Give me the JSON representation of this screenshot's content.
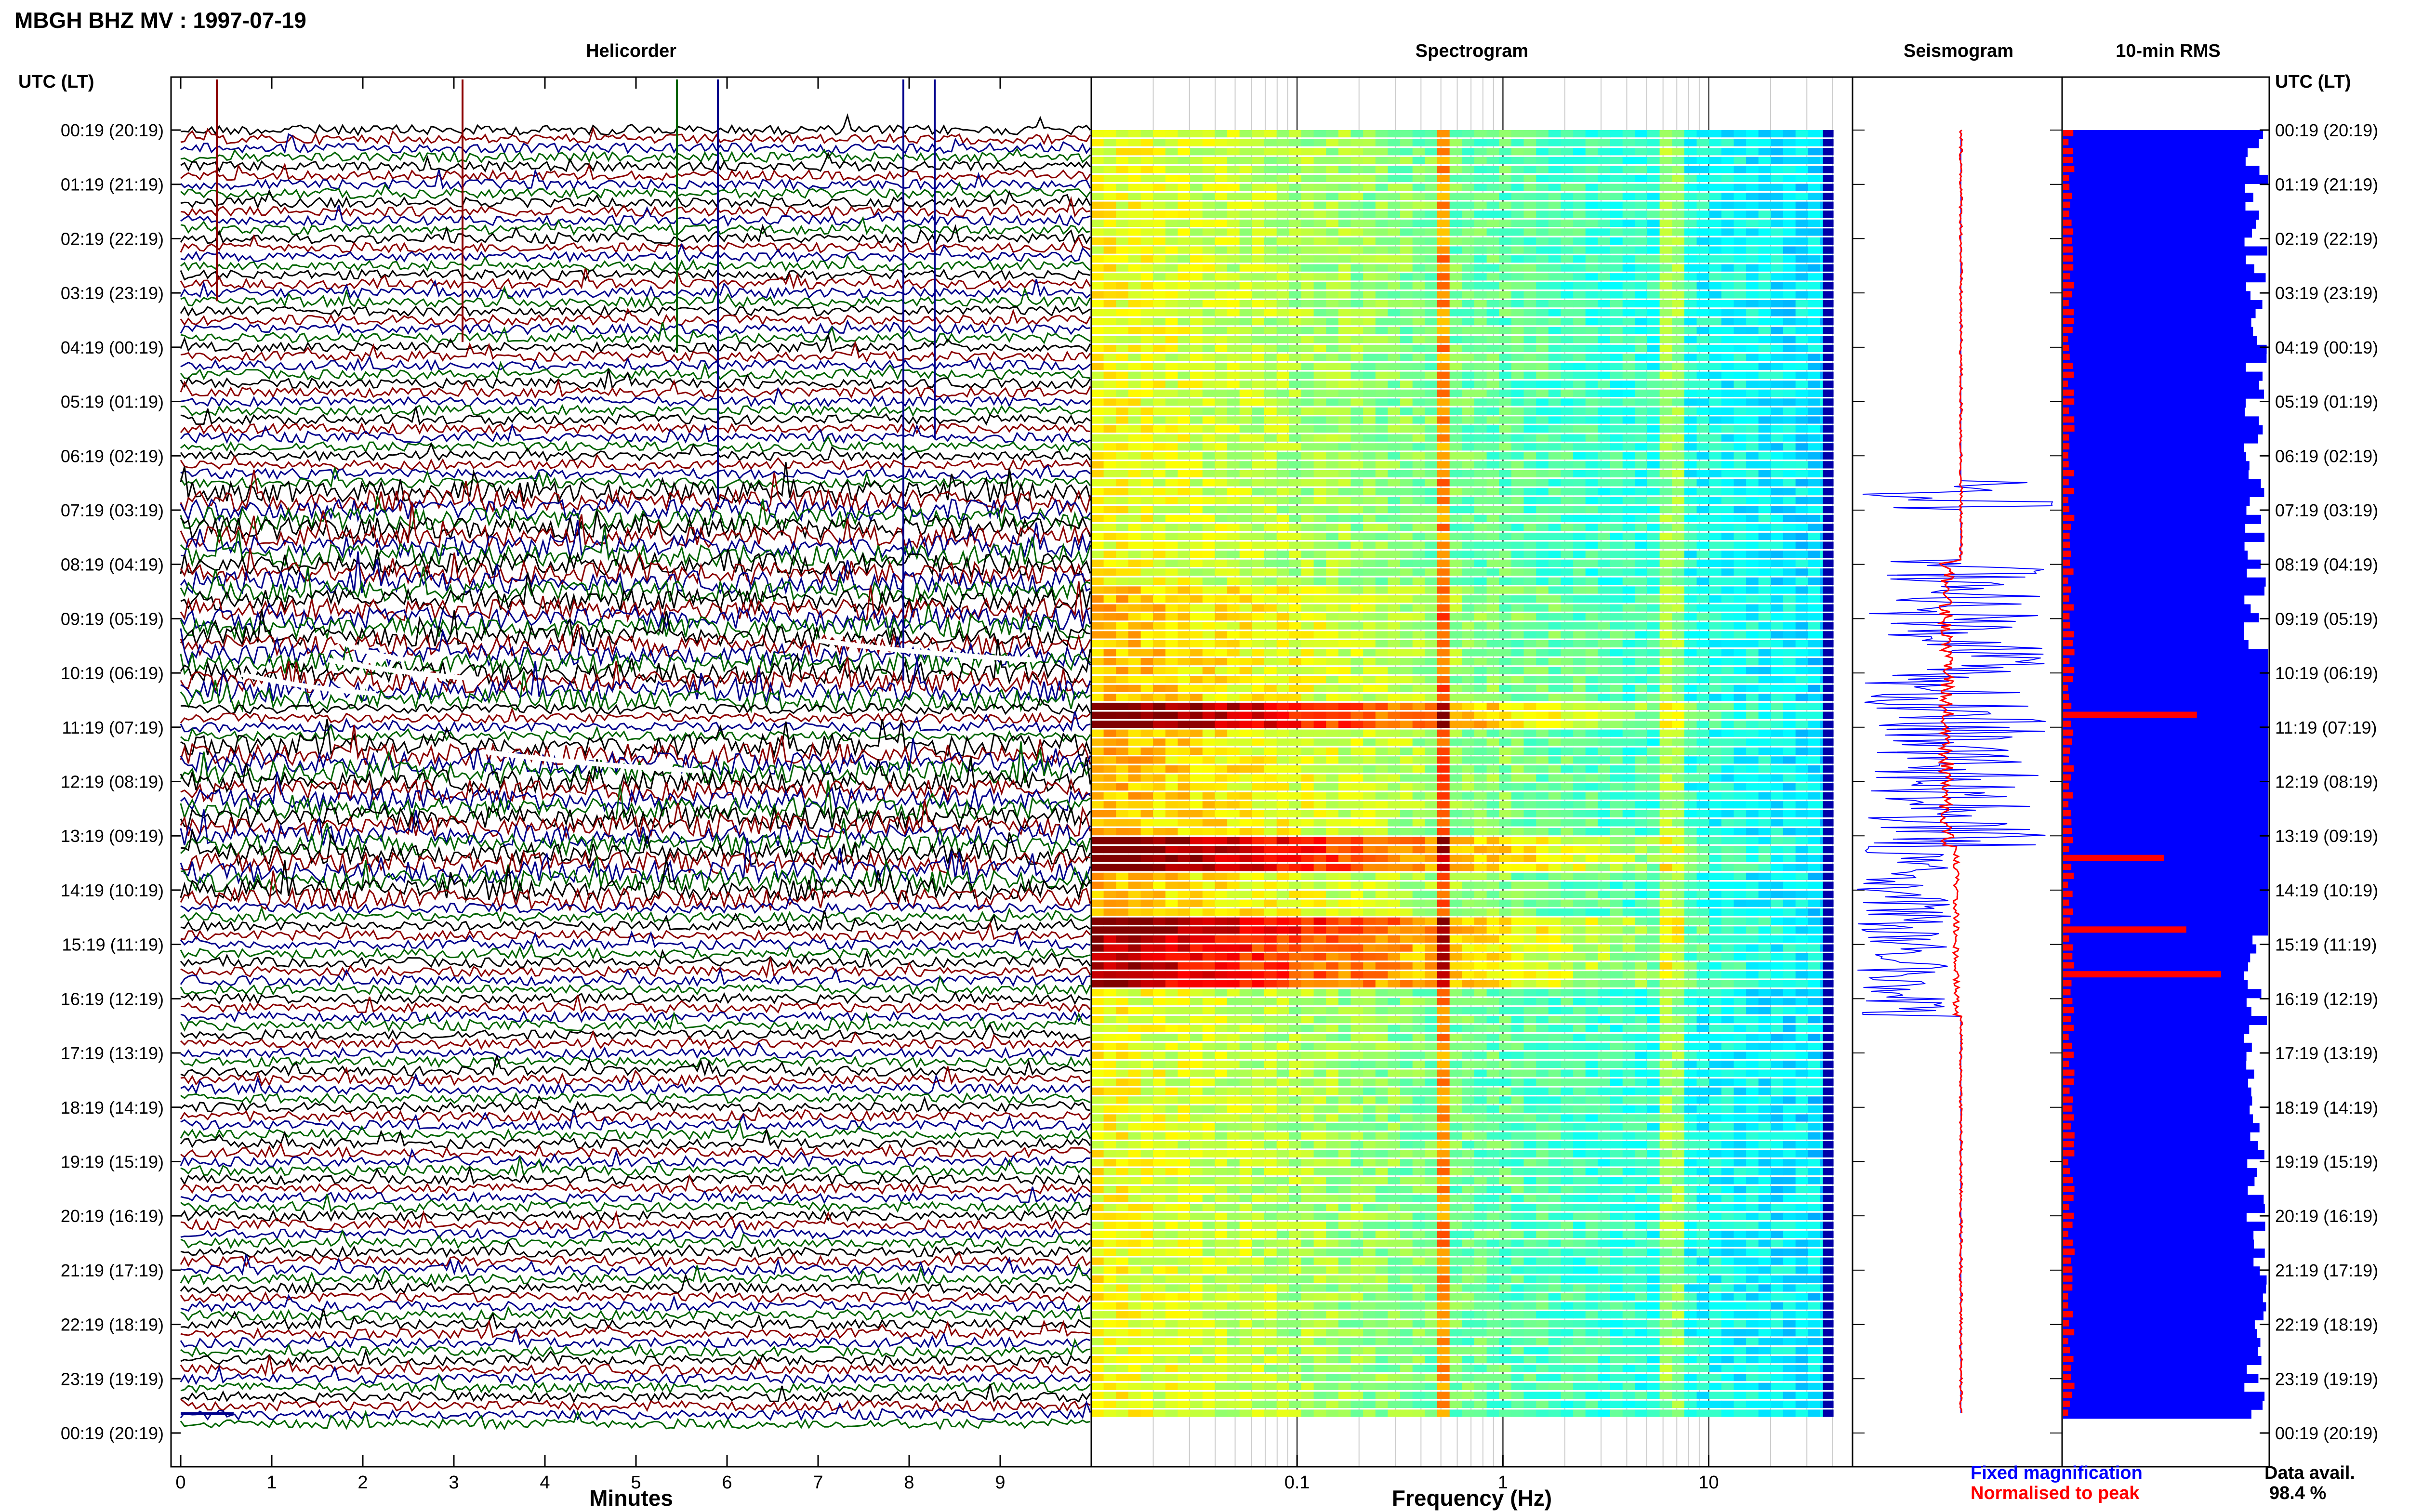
{
  "page_title": "MBGH BHZ MV : 1997-07-19",
  "legend": {
    "fixed": "Fixed magnification",
    "normalised": "Normalised to peak",
    "data_avail_label": "Data avail.",
    "data_avail_value": "98.4 %"
  },
  "colors": {
    "trace_black": "#000000",
    "trace_red": "#8b0000",
    "trace_blue": "#00008b",
    "trace_green": "#006400",
    "rms_bar": "#0000ff",
    "rms_peak": "#ff0000",
    "seismo_fixed": "#0000ff",
    "seismo_norm": "#ff0000"
  },
  "chart_data": [
    {
      "type": "line",
      "name": "helicorder",
      "title": "Helicorder",
      "xlabel": "Minutes",
      "ylabel": "UTC (LT)",
      "xlim": [
        0,
        10
      ],
      "xticks": [
        "0",
        "1",
        "2",
        "3",
        "4",
        "5",
        "6",
        "7",
        "8",
        "9"
      ],
      "yticks": [
        "00:19 (20:19)",
        "01:19 (21:19)",
        "02:19 (22:19)",
        "03:19 (23:19)",
        "04:19 (00:19)",
        "05:19 (01:19)",
        "06:19 (02:19)",
        "07:19 (03:19)",
        "08:19 (04:19)",
        "09:19 (05:19)",
        "10:19 (06:19)",
        "11:19 (07:19)",
        "12:19 (08:19)",
        "13:19 (09:19)",
        "14:19 (10:19)",
        "15:19 (11:19)",
        "16:19 (12:19)",
        "17:19 (13:19)",
        "18:19 (14:19)",
        "19:19 (15:19)",
        "20:19 (16:19)",
        "21:19 (17:19)",
        "22:19 (18:19)",
        "23:19 (19:19)",
        "00:19 (20:19)"
      ],
      "series_colors": [
        "black",
        "red",
        "blue",
        "green"
      ],
      "traces_per_hour": 6
    },
    {
      "type": "heatmap",
      "name": "spectrogram",
      "title": "Spectrogram",
      "xlabel": "Frequency (Hz)",
      "xscale": "log",
      "xlim": [
        0.01,
        50
      ],
      "xticks": [
        "0.1",
        "1",
        "10"
      ],
      "colormap": "jet",
      "rows": 144
    },
    {
      "type": "line",
      "name": "seismogram",
      "title": "Seismogram",
      "series": [
        {
          "name": "Fixed magnification",
          "color": "#0000ff"
        },
        {
          "name": "Normalised to peak",
          "color": "#ff0000"
        }
      ]
    },
    {
      "type": "bar",
      "name": "rms",
      "title": "10-min RMS",
      "orientation": "horizontal",
      "rows": 144,
      "peak_rows_fraction": [
        0.45,
        0.56,
        0.62,
        0.65
      ]
    }
  ]
}
